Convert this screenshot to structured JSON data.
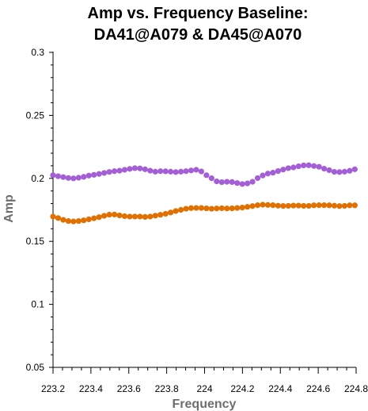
{
  "chart_data": {
    "type": "scatter",
    "title_line1": "Amp vs. Frequency Baseline:",
    "title_line2": "DA41@A079 & DA45@A070",
    "xlabel": "Frequency",
    "ylabel": "Amp",
    "xlim": [
      223.2,
      224.8
    ],
    "ylim": [
      0.05,
      0.3
    ],
    "x_ticks": [
      "223.2",
      "223.4",
      "223.6",
      "223.8",
      "224",
      "224.2",
      "224.4",
      "224.6",
      "224.8"
    ],
    "y_ticks": [
      "0.05",
      "0.1",
      "0.15",
      "0.2",
      "0.25",
      "0.3"
    ],
    "grid": false,
    "series": [
      {
        "color": "#a45fd6",
        "x": [
          223.2,
          223.227,
          223.254,
          223.281,
          223.308,
          223.335,
          223.362,
          223.389,
          223.416,
          223.443,
          223.47,
          223.497,
          223.524,
          223.551,
          223.578,
          223.605,
          223.632,
          223.659,
          223.686,
          223.713,
          223.74,
          223.767,
          223.794,
          223.821,
          223.848,
          223.875,
          223.902,
          223.929,
          223.956,
          223.983,
          224.01,
          224.037,
          224.064,
          224.091,
          224.118,
          224.145,
          224.172,
          224.199,
          224.226,
          224.253,
          224.28,
          224.307,
          224.334,
          224.361,
          224.388,
          224.415,
          224.442,
          224.469,
          224.496,
          224.523,
          224.55,
          224.577,
          224.604,
          224.631,
          224.658,
          224.685,
          224.712,
          224.739,
          224.766,
          224.793
        ],
        "values": [
          0.2025,
          0.2017,
          0.201,
          0.2003,
          0.2,
          0.2005,
          0.2012,
          0.2022,
          0.2028,
          0.2035,
          0.2043,
          0.2051,
          0.2057,
          0.2061,
          0.2068,
          0.2075,
          0.2081,
          0.2079,
          0.2072,
          0.2061,
          0.2053,
          0.2057,
          0.2056,
          0.2053,
          0.205,
          0.2053,
          0.2057,
          0.2063,
          0.2068,
          0.2055,
          0.2025,
          0.2001,
          0.1976,
          0.197,
          0.1973,
          0.1971,
          0.1963,
          0.1955,
          0.196,
          0.1973,
          0.2002,
          0.2023,
          0.2038,
          0.2045,
          0.2058,
          0.207,
          0.2081,
          0.2087,
          0.2096,
          0.2103,
          0.2104,
          0.2098,
          0.2092,
          0.2077,
          0.2065,
          0.2052,
          0.205,
          0.2053,
          0.206,
          0.2072
        ]
      },
      {
        "color": "#e07000",
        "x": [
          223.2,
          223.227,
          223.254,
          223.281,
          223.308,
          223.335,
          223.362,
          223.389,
          223.416,
          223.443,
          223.47,
          223.497,
          223.524,
          223.551,
          223.578,
          223.605,
          223.632,
          223.659,
          223.686,
          223.713,
          223.74,
          223.767,
          223.794,
          223.821,
          223.848,
          223.875,
          223.902,
          223.929,
          223.956,
          223.983,
          224.01,
          224.037,
          224.064,
          224.091,
          224.118,
          224.145,
          224.172,
          224.199,
          224.226,
          224.253,
          224.28,
          224.307,
          224.334,
          224.361,
          224.388,
          224.415,
          224.442,
          224.469,
          224.496,
          224.523,
          224.55,
          224.577,
          224.604,
          224.631,
          224.658,
          224.685,
          224.712,
          224.739,
          224.766,
          224.793
        ],
        "values": [
          0.1697,
          0.1685,
          0.1671,
          0.1661,
          0.1658,
          0.1661,
          0.1667,
          0.1675,
          0.1683,
          0.1692,
          0.1703,
          0.1712,
          0.1713,
          0.1706,
          0.17,
          0.1697,
          0.1697,
          0.1697,
          0.1694,
          0.1697,
          0.1704,
          0.1711,
          0.1719,
          0.1729,
          0.1741,
          0.175,
          0.1759,
          0.1764,
          0.1765,
          0.1765,
          0.1762,
          0.1759,
          0.1761,
          0.1763,
          0.1761,
          0.1762,
          0.1765,
          0.1768,
          0.1774,
          0.178,
          0.1787,
          0.1791,
          0.1789,
          0.1787,
          0.1783,
          0.1781,
          0.1782,
          0.1784,
          0.1784,
          0.1782,
          0.1782,
          0.1786,
          0.1787,
          0.1787,
          0.1786,
          0.1783,
          0.178,
          0.1782,
          0.1786,
          0.1786
        ]
      }
    ]
  }
}
